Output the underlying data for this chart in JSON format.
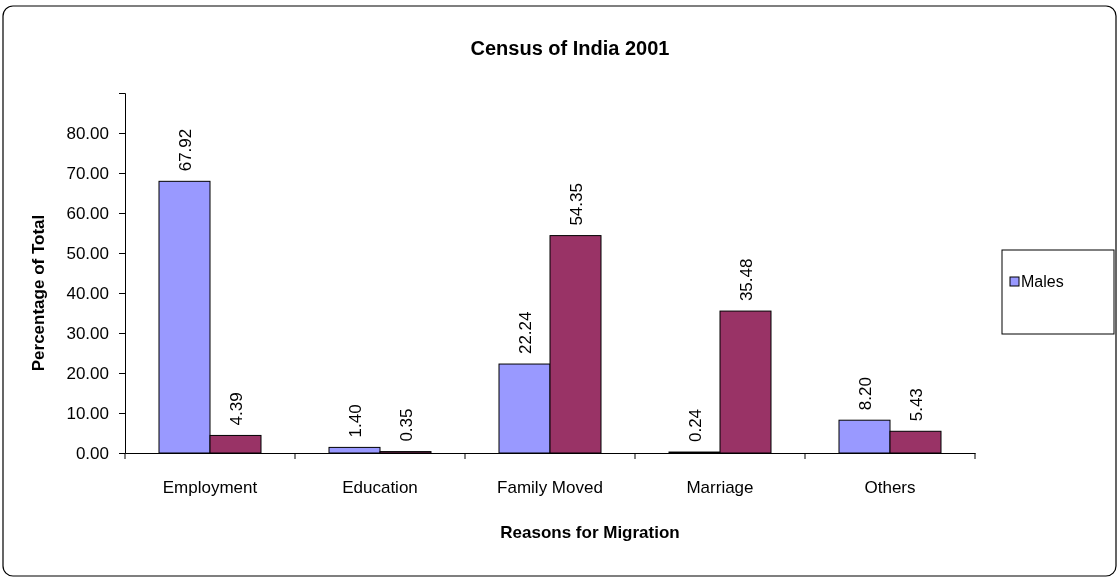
{
  "chart_data": {
    "type": "bar",
    "title": "Census of India 2001",
    "xlabel": "Reasons for Migration",
    "ylabel": "Percentage of Total",
    "categories": [
      "Employment",
      "Education",
      "Family Moved",
      "Marriage",
      "Others"
    ],
    "series": [
      {
        "name": "Males",
        "color": "#9999ff",
        "values": [
          67.92,
          1.4,
          22.24,
          0.24,
          8.2
        ],
        "value_labels": [
          "67.92",
          "1.40",
          "22.24",
          "0.24",
          "8.20"
        ]
      },
      {
        "color": "#993366",
        "values": [
          4.39,
          0.35,
          54.35,
          35.48,
          5.43
        ],
        "value_labels": [
          "4.39",
          "0.35",
          "54.35",
          "35.48",
          "5.43"
        ]
      }
    ],
    "ylim": [
      0,
      90
    ],
    "yticks": [
      {
        "value": 0,
        "label": "0.00"
      },
      {
        "value": 10,
        "label": "10.00"
      },
      {
        "value": 20,
        "label": "20.00"
      },
      {
        "value": 30,
        "label": "30.00"
      },
      {
        "value": 40,
        "label": "40.00"
      },
      {
        "value": 50,
        "label": "50.00"
      },
      {
        "value": 60,
        "label": "60.00"
      },
      {
        "value": 70,
        "label": "70.00"
      },
      {
        "value": 80,
        "label": "80.00"
      }
    ],
    "legend": "right",
    "grid": false
  }
}
